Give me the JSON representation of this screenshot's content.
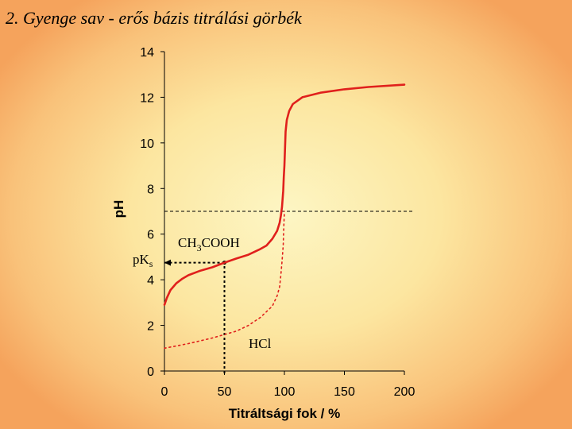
{
  "slide": {
    "title": "2. Gyenge sav - erős bázis titrálási görbék"
  },
  "chart_data": {
    "type": "line",
    "xlabel": "Titráltsági fok / %",
    "ylabel": "pH",
    "xlim": [
      0,
      200
    ],
    "ylim": [
      0,
      14
    ],
    "xticks": [
      "0",
      "50",
      "100",
      "150",
      "200"
    ],
    "yticks": [
      "0",
      "2",
      "4",
      "6",
      "8",
      "10",
      "12",
      "14"
    ],
    "grid": false,
    "series": [
      {
        "name": "CH3COOH",
        "name_main": "CH",
        "name_sub": "3",
        "name_rest": "COOH",
        "style": "solid",
        "color": "#e0201c",
        "points": [
          [
            0,
            2.9
          ],
          [
            2,
            3.2
          ],
          [
            5,
            3.55
          ],
          [
            10,
            3.85
          ],
          [
            15,
            4.05
          ],
          [
            20,
            4.2
          ],
          [
            30,
            4.4
          ],
          [
            40,
            4.55
          ],
          [
            50,
            4.75
          ],
          [
            60,
            4.93
          ],
          [
            70,
            5.1
          ],
          [
            80,
            5.35
          ],
          [
            85,
            5.5
          ],
          [
            90,
            5.8
          ],
          [
            94,
            6.15
          ],
          [
            96,
            6.5
          ],
          [
            97,
            6.8
          ],
          [
            98,
            7.2
          ],
          [
            99,
            7.9
          ],
          [
            99.5,
            8.5
          ],
          [
            100,
            9.0
          ],
          [
            100.5,
            9.8
          ],
          [
            101,
            10.5
          ],
          [
            102,
            11.0
          ],
          [
            104,
            11.4
          ],
          [
            107,
            11.7
          ],
          [
            115,
            12.0
          ],
          [
            130,
            12.2
          ],
          [
            150,
            12.35
          ],
          [
            170,
            12.45
          ],
          [
            200,
            12.55
          ]
        ]
      },
      {
        "name": "HCl",
        "name_main": "HCl",
        "style": "dotted",
        "color": "#e0201c",
        "points": [
          [
            0,
            1.0
          ],
          [
            20,
            1.2
          ],
          [
            40,
            1.45
          ],
          [
            60,
            1.75
          ],
          [
            70,
            2.0
          ],
          [
            80,
            2.35
          ],
          [
            90,
            2.85
          ],
          [
            94,
            3.3
          ],
          [
            96,
            3.7
          ],
          [
            97,
            4.2
          ],
          [
            98,
            4.8
          ],
          [
            99,
            5.5
          ],
          [
            99.5,
            6.3
          ],
          [
            100,
            7.0
          ]
        ]
      }
    ],
    "reference_lines": {
      "equivalence_ph": 7,
      "half_titration_x": 50,
      "half_titration_ph": 4.75
    },
    "annotations": {
      "pks_label_main": "pK",
      "pks_label_sub": "s"
    }
  }
}
